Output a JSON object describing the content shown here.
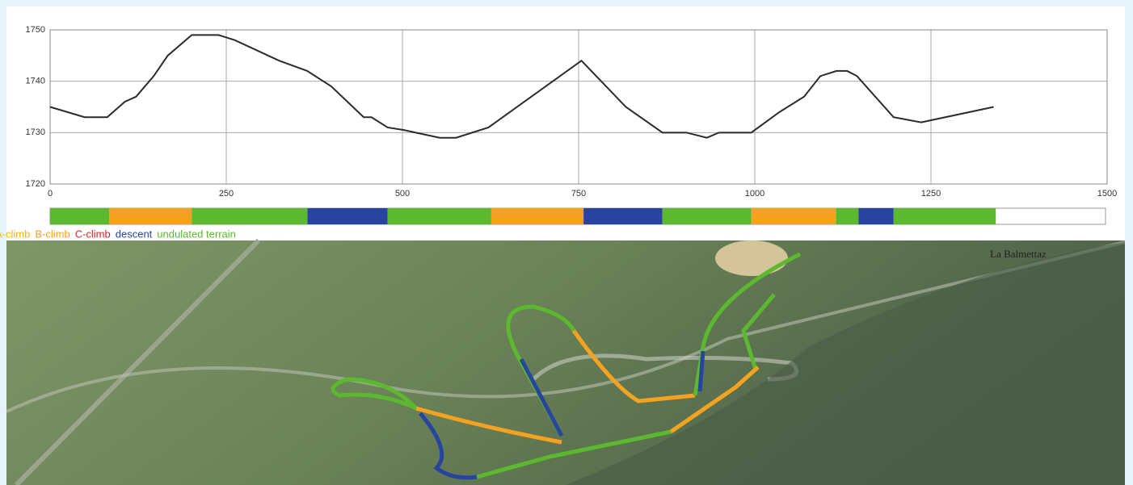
{
  "chart_data": {
    "type": "line",
    "x": [
      0,
      49,
      81,
      106,
      122,
      147,
      167,
      201,
      239,
      262,
      325,
      365,
      399,
      445,
      456,
      479,
      502,
      553,
      576,
      622,
      754,
      817,
      869,
      903,
      932,
      949,
      995,
      1035,
      1070,
      1093,
      1116,
      1131,
      1145,
      1197,
      1236,
      1339
    ],
    "values": [
      1735,
      1733,
      1733,
      1736,
      1737,
      1741,
      1745,
      1749,
      1749,
      1748,
      1744,
      1742,
      1739,
      1733,
      1733,
      1731,
      1730.5,
      1729,
      1729,
      1731,
      1744,
      1735,
      1730,
      1730,
      1729,
      1730,
      1730,
      1734,
      1737,
      1741,
      1742,
      1742,
      1741,
      1733,
      1732,
      1735
    ],
    "color": "#2b2b2b",
    "xlim": [
      0,
      1500
    ],
    "xticks": [
      0,
      250,
      500,
      750,
      1000,
      1250,
      1500
    ],
    "ylim": [
      1720,
      1750
    ],
    "yticks": [
      1720,
      1730,
      1740,
      1750
    ],
    "grid": true,
    "legend": [
      {
        "name": "A-climb",
        "color": "#f2b418",
        "ranges": []
      },
      {
        "name": "B-climb",
        "color": "#f4a21f",
        "ranges": [
          [
            84,
            201
          ],
          [
            626,
            757
          ],
          [
            995,
            1115
          ]
        ]
      },
      {
        "name": "C-climb",
        "color": "#d8282a",
        "ranges": []
      },
      {
        "name": "descent",
        "color": "#27459f",
        "ranges": [
          [
            365,
            479
          ],
          [
            757,
            869
          ],
          [
            1147,
            1197
          ]
        ]
      },
      {
        "name": "undulated terrain",
        "color": "#5cb82e",
        "ranges": [
          [
            0,
            84
          ],
          [
            201,
            365
          ],
          [
            479,
            626
          ],
          [
            869,
            995
          ],
          [
            1115,
            1147
          ],
          [
            1197,
            1342
          ]
        ]
      }
    ]
  },
  "map": {
    "label": "La Balmettaz"
  }
}
